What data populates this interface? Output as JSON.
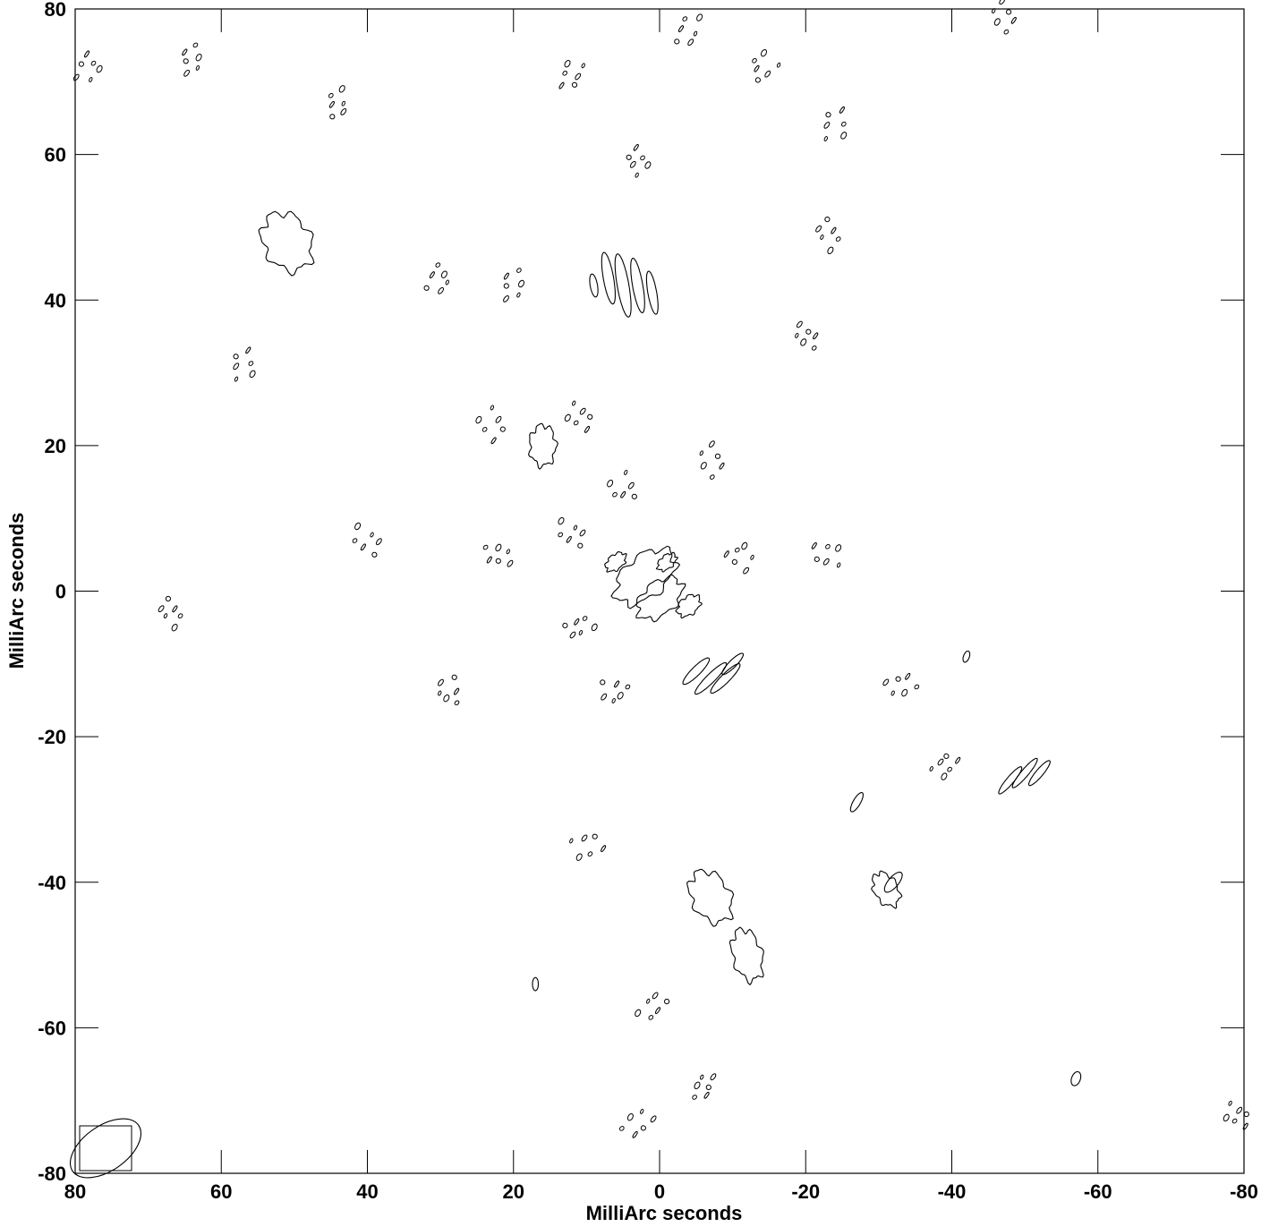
{
  "chart_data": {
    "type": "contour",
    "xlabel": "MilliArc seconds",
    "ylabel": "MilliArc seconds",
    "xlim": [
      80,
      -80
    ],
    "ylim": [
      -80,
      80
    ],
    "x_ticks": [
      80,
      60,
      40,
      20,
      0,
      -20,
      -40,
      -60,
      -80
    ],
    "y_ticks": [
      80,
      60,
      40,
      20,
      0,
      -20,
      -40,
      -60,
      -80
    ],
    "minor_ticks": "every 20 units on all four sides",
    "beam": {
      "major": 5.0,
      "minor": 2.8,
      "angle_deg": 35,
      "location": "bottom-left"
    },
    "contours": [
      {
        "x": 51,
        "y": 48,
        "rx": 3.2,
        "ry": 4.2,
        "rot": -30,
        "wavy": true
      },
      {
        "x": 16,
        "y": 20,
        "rx": 1.8,
        "ry": 2.8,
        "rot": 0,
        "wavy": true
      },
      {
        "x": 2,
        "y": 2,
        "rx": 4.8,
        "ry": 2.8,
        "rot": -40,
        "wavy": true
      },
      {
        "x": 0,
        "y": -1,
        "rx": 3.6,
        "ry": 2.2,
        "rot": -40,
        "wavy": true
      },
      {
        "x": 6,
        "y": 4,
        "rx": 1.6,
        "ry": 1.0,
        "rot": -40,
        "wavy": true
      },
      {
        "x": -4,
        "y": -2,
        "rx": 1.8,
        "ry": 1.2,
        "rot": -40,
        "wavy": true
      },
      {
        "x": -1,
        "y": 4,
        "rx": 1.5,
        "ry": 0.9,
        "rot": -40,
        "wavy": true
      },
      {
        "x": -7,
        "y": -42,
        "rx": 2.6,
        "ry": 3.8,
        "rot": -30,
        "wavy": true
      },
      {
        "x": -12,
        "y": -50,
        "rx": 2.0,
        "ry": 3.6,
        "rot": -15,
        "wavy": true
      },
      {
        "x": -31,
        "y": -41,
        "rx": 1.6,
        "ry": 2.5,
        "rot": -30,
        "wavy": true
      },
      {
        "x": 7,
        "y": 43,
        "rx": 0.7,
        "ry": 3.6,
        "rot": -10,
        "wavy": false
      },
      {
        "x": 5,
        "y": 42,
        "rx": 0.8,
        "ry": 4.4,
        "rot": -10,
        "wavy": false
      },
      {
        "x": 3,
        "y": 42,
        "rx": 0.7,
        "ry": 3.8,
        "rot": -10,
        "wavy": false
      },
      {
        "x": 1,
        "y": 41,
        "rx": 0.6,
        "ry": 3.0,
        "rot": -10,
        "wavy": false
      },
      {
        "x": 9,
        "y": 42,
        "rx": 0.5,
        "ry": 1.6,
        "rot": -10,
        "wavy": false
      },
      {
        "x": -5,
        "y": -11,
        "rx": 0.6,
        "ry": 2.5,
        "rot": 45,
        "wavy": false
      },
      {
        "x": -7,
        "y": -12,
        "rx": 0.6,
        "ry": 3.0,
        "rot": 45,
        "wavy": false
      },
      {
        "x": -9,
        "y": -12,
        "rx": 0.6,
        "ry": 2.8,
        "rot": 45,
        "wavy": false
      },
      {
        "x": -10,
        "y": -10,
        "rx": 0.5,
        "ry": 2.0,
        "rot": 45,
        "wavy": false
      },
      {
        "x": -48,
        "y": -26,
        "rx": 0.5,
        "ry": 2.4,
        "rot": 40,
        "wavy": false
      },
      {
        "x": -50,
        "y": -25,
        "rx": 0.5,
        "ry": 2.6,
        "rot": 40,
        "wavy": false
      },
      {
        "x": -52,
        "y": -25,
        "rx": 0.5,
        "ry": 2.2,
        "rot": 40,
        "wavy": false
      },
      {
        "x": -27,
        "y": -29,
        "rx": 0.5,
        "ry": 1.5,
        "rot": 30,
        "wavy": false
      },
      {
        "x": -32,
        "y": -40,
        "rx": 0.7,
        "ry": 1.7,
        "rot": 40,
        "wavy": false
      },
      {
        "x": -57,
        "y": -67,
        "rx": 0.6,
        "ry": 1.0,
        "rot": 20,
        "wavy": false
      },
      {
        "x": 17,
        "y": -54,
        "rx": 0.4,
        "ry": 0.9,
        "rot": 0,
        "wavy": false
      },
      {
        "x": -42,
        "y": -9,
        "rx": 0.4,
        "ry": 0.8,
        "rot": 20,
        "wavy": false
      }
    ],
    "speckles": [
      {
        "x": 44,
        "y": 67
      },
      {
        "x": 30,
        "y": 43
      },
      {
        "x": 20,
        "y": 42
      },
      {
        "x": 3,
        "y": 59
      },
      {
        "x": -24,
        "y": 64
      },
      {
        "x": -23,
        "y": 49
      },
      {
        "x": -20,
        "y": 35
      },
      {
        "x": -7,
        "y": 18
      },
      {
        "x": 11,
        "y": 24
      },
      {
        "x": 5,
        "y": 14
      },
      {
        "x": 40,
        "y": 7
      },
      {
        "x": 22,
        "y": 5
      },
      {
        "x": -11,
        "y": 5
      },
      {
        "x": -23,
        "y": 5
      },
      {
        "x": 11,
        "y": -5
      },
      {
        "x": 6,
        "y": -14
      },
      {
        "x": -33,
        "y": -13
      },
      {
        "x": -39,
        "y": -24
      },
      {
        "x": 10,
        "y": -35
      },
      {
        "x": 1,
        "y": -57
      },
      {
        "x": -6,
        "y": -68
      },
      {
        "x": 3,
        "y": -73
      },
      {
        "x": 12,
        "y": 71
      },
      {
        "x": -14,
        "y": 72
      },
      {
        "x": -4,
        "y": 77
      },
      {
        "x": 64,
        "y": 73
      },
      {
        "x": 78,
        "y": 72
      },
      {
        "x": 57,
        "y": 31
      },
      {
        "x": 67,
        "y": -3
      },
      {
        "x": 29,
        "y": -14
      },
      {
        "x": -47,
        "y": 79
      },
      {
        "x": -79,
        "y": -72
      },
      {
        "x": 23,
        "y": 23
      },
      {
        "x": 12,
        "y": 8
      }
    ]
  }
}
